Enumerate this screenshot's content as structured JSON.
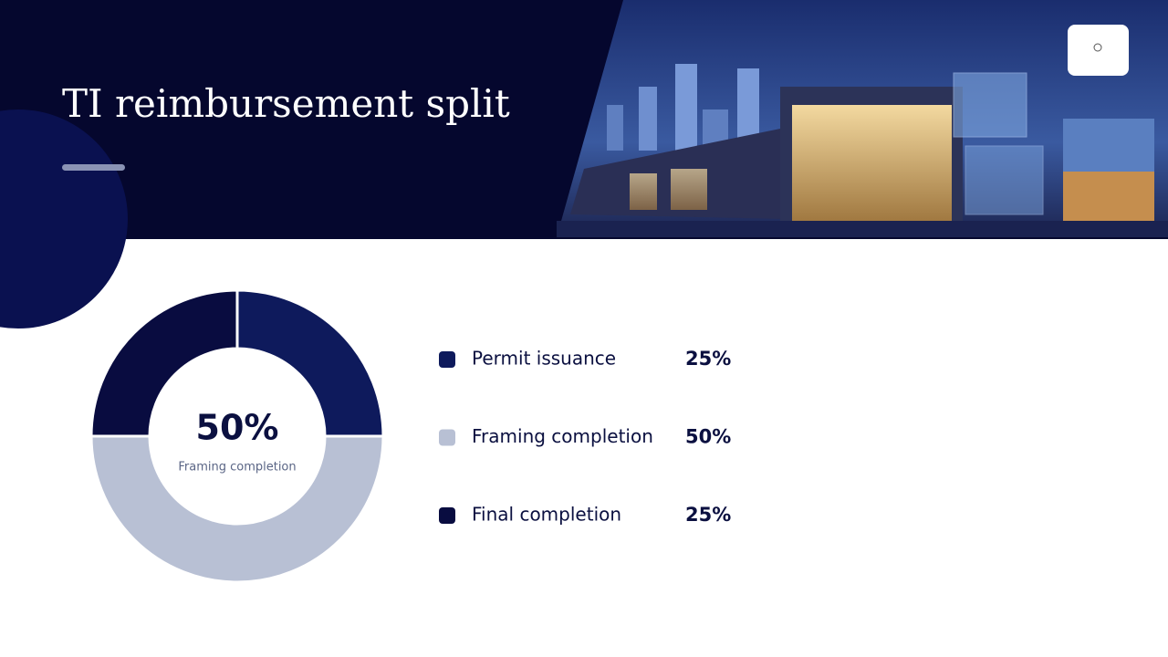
{
  "chart_data": {
    "type": "donut",
    "title": "TI reimbursement split",
    "categories": [
      "Permit issuance",
      "Framing completion",
      "Final completion"
    ],
    "values": [
      25,
      50,
      25
    ],
    "value_labels": [
      "25%",
      "50%",
      "25%"
    ],
    "colors": [
      "#0e1a5c",
      "#b8c0d4",
      "#090c40"
    ]
  }
}
